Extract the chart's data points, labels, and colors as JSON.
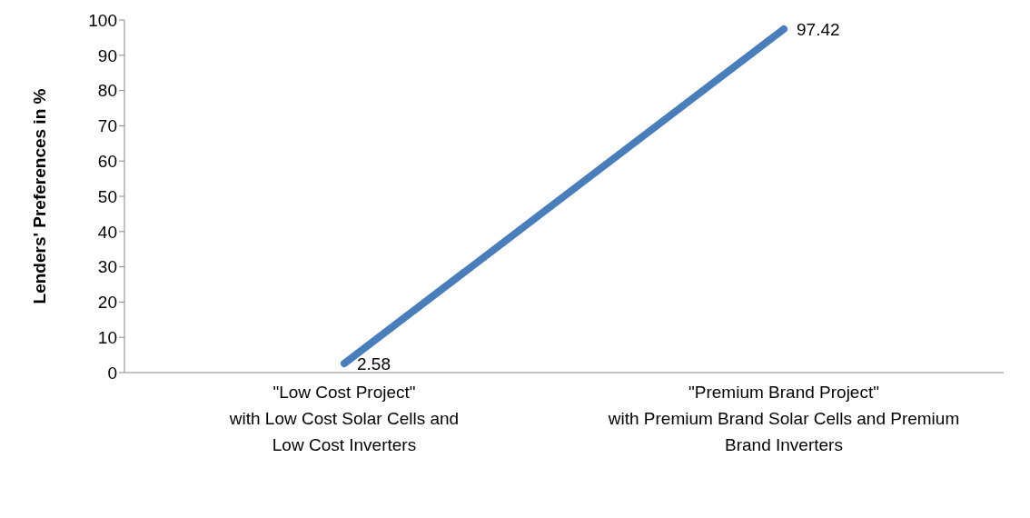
{
  "chart_data": {
    "type": "line",
    "ylabel": "Lenders' Preferences in %",
    "categories": [
      "\"Low Cost Project\"\nwith Low Cost Solar Cells and\nLow Cost Inverters",
      "\"Premium Brand Project\"\nwith Premium Brand Solar Cells and Premium\nBrand Inverters"
    ],
    "series": [
      {
        "color": "#4a7ebb",
        "values": [
          2.58,
          97.42
        ]
      }
    ],
    "ylim": [
      0,
      100
    ],
    "yticks": [
      0,
      10,
      20,
      30,
      40,
      50,
      60,
      70,
      80,
      90,
      100
    ],
    "data_labels": true,
    "grid": false,
    "legend": false,
    "marker": "none"
  }
}
